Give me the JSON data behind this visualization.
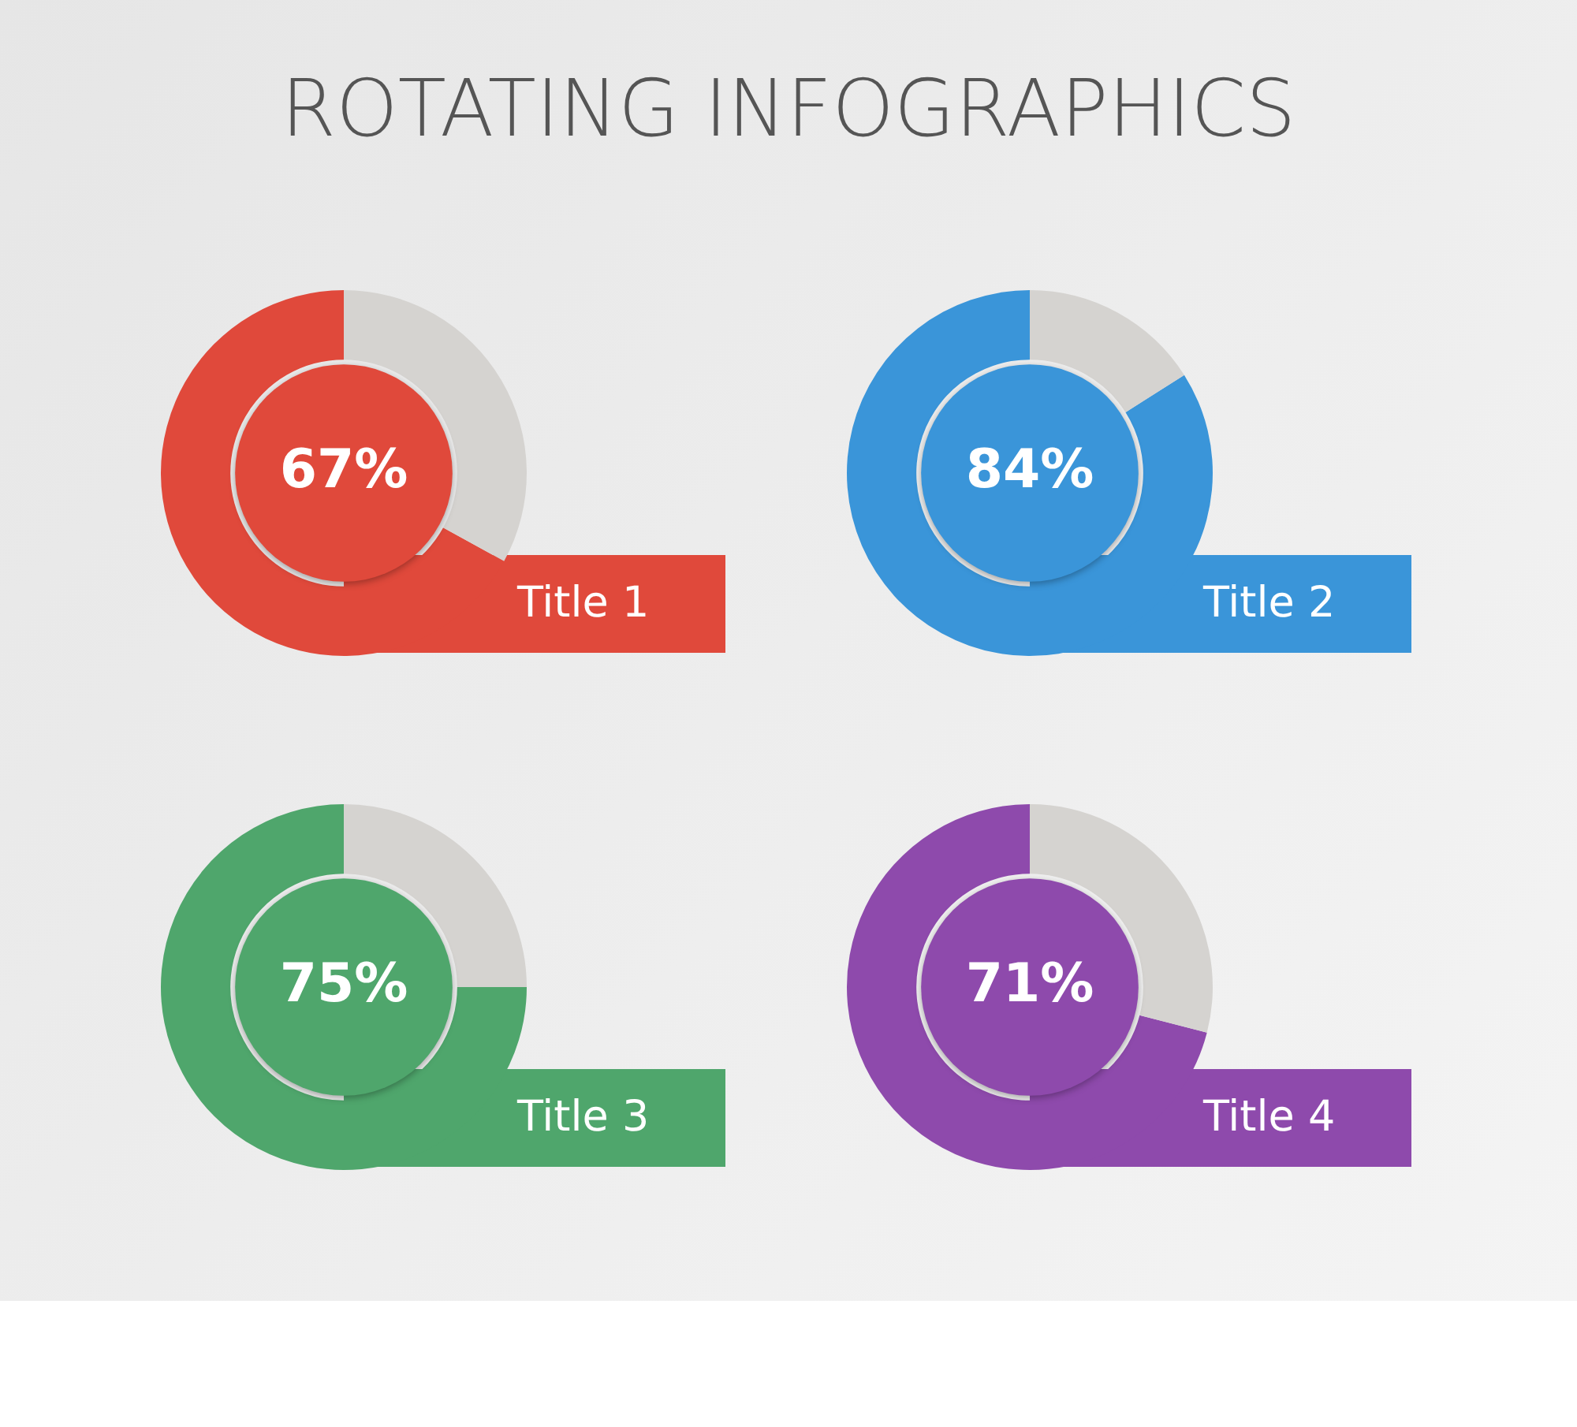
{
  "chart_data": [
    {
      "type": "other",
      "title": "ROTATING INFOGRAPHICS"
    },
    {
      "type": "donut",
      "title": "Title 1",
      "categories": [
        null,
        null
      ],
      "values": [
        67,
        33
      ],
      "colors": [
        "#e0493b",
        "#d5d3d0"
      ],
      "value_labels": [
        "67%",
        null
      ],
      "legend": false
    },
    {
      "type": "donut",
      "title": "Title 2",
      "categories": [
        null,
        null
      ],
      "values": [
        84,
        16
      ],
      "colors": [
        "#3a95d9",
        "#d5d3d0"
      ],
      "value_labels": [
        "84%",
        null
      ],
      "legend": false
    },
    {
      "type": "donut",
      "title": "Title 3",
      "categories": [
        null,
        null
      ],
      "values": [
        75,
        25
      ],
      "colors": [
        "#4fa66c",
        "#d5d3d0"
      ],
      "value_labels": [
        "75%",
        null
      ],
      "legend": false
    },
    {
      "type": "donut",
      "title": "Title 4",
      "categories": [
        null,
        null
      ],
      "values": [
        71,
        29
      ],
      "colors": [
        "#8e4aac",
        "#d5d3d0"
      ],
      "value_labels": [
        "71%",
        null
      ],
      "legend": false
    }
  ]
}
